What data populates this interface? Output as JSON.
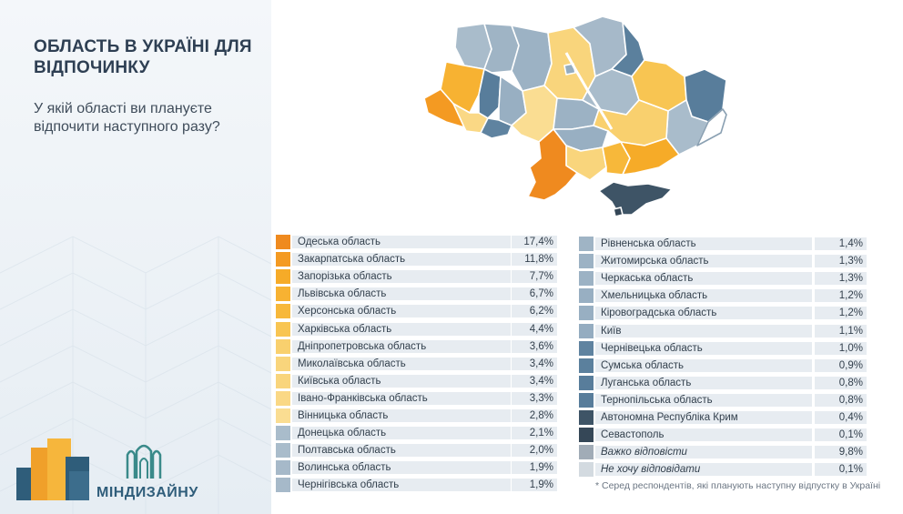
{
  "title": "ОБЛАСТЬ В УКРАЇНІ ДЛЯ ВІДПОЧИНКУ",
  "subtitle": "У якій області ви плануєте відпочити наступного разу?",
  "brand_name": "МІНДИЗАЙНУ",
  "footnote": "* Серед респондентів, які планують наступну  відпустку в Україні",
  "colors": {
    "orange_dark": "#ef8a1f",
    "orange": "#f6a623",
    "yellow": "#f8bd3c",
    "yellow_light": "#f8cc5e",
    "sand": "#fadb8c",
    "blue_grey": "#a3b8c8",
    "blue_mid": "#5c809c",
    "navy": "#3a4f62"
  },
  "chart_data": {
    "type": "table",
    "title": "ОБЛАСТЬ В УКРАЇНІ ДЛЯ ВІДПОЧИНКУ",
    "columns": [
      [
        {
          "label": "Одеська область",
          "display": "17,4%",
          "value": 17.4,
          "color": "#ef8a1f"
        },
        {
          "label": "Закарпатська область",
          "display": "11,8%",
          "value": 11.8,
          "color": "#f49a22"
        },
        {
          "label": "Запорізька область",
          "display": "7,7%",
          "value": 7.7,
          "color": "#f6ab28"
        },
        {
          "label": "Львівська область",
          "display": "6,7%",
          "value": 6.7,
          "color": "#f7b232"
        },
        {
          "label": "Херсонська область",
          "display": "6,2%",
          "value": 6.2,
          "color": "#f7b83a"
        },
        {
          "label": "Харківська область",
          "display": "4,4%",
          "value": 4.4,
          "color": "#f8c552"
        },
        {
          "label": "Дніпропетровська область",
          "display": "3,6%",
          "value": 3.6,
          "color": "#f9d06e"
        },
        {
          "label": "Миколаївська область",
          "display": "3,4%",
          "value": 3.4,
          "color": "#f9d57c"
        },
        {
          "label": "Київська область",
          "display": "3,4%",
          "value": 3.4,
          "color": "#f9d57c"
        },
        {
          "label": "Івано-Франківська область",
          "display": "3,3%",
          "value": 3.3,
          "color": "#fad885"
        },
        {
          "label": "Вінницька область",
          "display": "2,8%",
          "value": 2.8,
          "color": "#fadd92"
        },
        {
          "label": "Донецька область",
          "display": "2,1%",
          "value": 2.1,
          "color": "#a9bccb"
        },
        {
          "label": "Полтавська область",
          "display": "2,0%",
          "value": 2.0,
          "color": "#a9bccb"
        },
        {
          "label": "Волинська область",
          "display": "1,9%",
          "value": 1.9,
          "color": "#a6b9c9"
        },
        {
          "label": "Чернігівська область",
          "display": "1,9%",
          "value": 1.9,
          "color": "#a6b9c9"
        }
      ],
      [
        {
          "label": "Рівненська область",
          "display": "1,4%",
          "value": 1.4,
          "color": "#9fb4c5"
        },
        {
          "label": "Житомирська область",
          "display": "1,3%",
          "value": 1.3,
          "color": "#9cb2c4"
        },
        {
          "label": "Черкаська область",
          "display": "1,3%",
          "value": 1.3,
          "color": "#9cb2c4"
        },
        {
          "label": "Хмельницька область",
          "display": "1,2%",
          "value": 1.2,
          "color": "#98afc2"
        },
        {
          "label": "Кіровоградська область",
          "display": "1,2%",
          "value": 1.2,
          "color": "#98afc2"
        },
        {
          "label": "Київ",
          "display": "1,1%",
          "value": 1.1,
          "color": "#94acc0"
        },
        {
          "label": "Чернівецька область",
          "display": "1,0%",
          "value": 1.0,
          "color": "#5f83a0"
        },
        {
          "label": "Сумська область",
          "display": "0,9%",
          "value": 0.9,
          "color": "#5b809d"
        },
        {
          "label": "Луганська область",
          "display": "0,8%",
          "value": 0.8,
          "color": "#587d9b"
        },
        {
          "label": "Тернопільська область",
          "display": "0,8%",
          "value": 0.8,
          "color": "#587d9b"
        },
        {
          "label": "Автономна Республіка Крим",
          "display": "0,4%",
          "value": 0.4,
          "color": "#3e5466"
        },
        {
          "label": "Севастополь",
          "display": "0,1%",
          "value": 0.1,
          "color": "#354757"
        },
        {
          "label": "Важко відповісти",
          "display": "9,8%",
          "value": 9.8,
          "color": "#a1acb7",
          "italic": true
        },
        {
          "label": "Не хочу відповідати",
          "display": "0,1%",
          "value": 0.1,
          "color": "#d3dae0",
          "italic": true
        }
      ]
    ]
  }
}
